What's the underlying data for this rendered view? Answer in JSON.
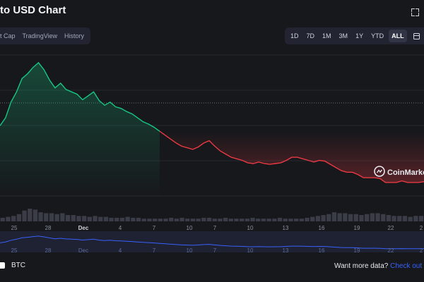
{
  "header": {
    "title": "to USD Chart"
  },
  "view_tabs": [
    "t Cap",
    "TradingView",
    "History"
  ],
  "range_buttons": [
    {
      "label": "1D",
      "active": false
    },
    {
      "label": "7D",
      "active": false
    },
    {
      "label": "1M",
      "active": false
    },
    {
      "label": "3M",
      "active": false
    },
    {
      "label": "1Y",
      "active": false
    },
    {
      "label": "YTD",
      "active": false
    },
    {
      "label": "ALL",
      "active": true
    }
  ],
  "icons": {
    "calendar": "calendar-icon",
    "expand": "expand-icon",
    "watermark": "coinmarketcap-logo-icon"
  },
  "watermark": "CoinMarket",
  "footer": {
    "legend_label": "BTC",
    "want_more": "Want more data?",
    "check_out": "Check out o"
  },
  "colors": {
    "up": "#16c784",
    "down": "#ea3943",
    "navigator": "#3861fb",
    "volume": "#3a3d47"
  },
  "chart_data": {
    "type": "line",
    "x_tick_labels": [
      "25",
      "28",
      "Dec",
      "4",
      "7",
      "10",
      "7",
      "10",
      "13",
      "16",
      "19",
      "22",
      "2"
    ],
    "reference_level": 0.41,
    "series": [
      {
        "values": [
          0.12,
          0.22,
          0.42,
          0.55,
          0.72,
          0.78,
          0.86,
          0.92,
          0.83,
          0.7,
          0.6,
          0.66,
          0.58,
          0.55,
          0.52,
          0.45,
          0.5,
          0.55,
          0.44,
          0.38,
          0.42,
          0.36,
          0.34,
          0.3,
          0.27,
          0.22,
          0.17,
          0.14,
          0.1,
          0.05,
          0.0,
          -0.05,
          -0.1,
          -0.14,
          -0.16,
          -0.18,
          -0.15,
          -0.1,
          -0.07,
          -0.14,
          -0.2,
          -0.24,
          -0.28,
          -0.3,
          -0.32,
          -0.35,
          -0.36,
          -0.34,
          -0.36,
          -0.37,
          -0.36,
          -0.35,
          -0.32,
          -0.28,
          -0.28,
          -0.3,
          -0.32,
          -0.34,
          -0.32,
          -0.33,
          -0.37,
          -0.41,
          -0.45,
          -0.47,
          -0.47,
          -0.5,
          -0.54,
          -0.54,
          -0.54,
          -0.55,
          -0.6,
          -0.6,
          -0.6,
          -0.58,
          -0.6,
          -0.6,
          -0.6,
          -0.59
        ]
      }
    ],
    "volume": [
      4,
      5,
      6,
      8,
      12,
      14,
      13,
      10,
      9,
      9,
      8,
      9,
      7,
      7,
      6,
      6,
      5,
      6,
      5,
      5,
      4,
      4,
      4,
      5,
      4,
      4,
      3,
      3,
      3,
      3,
      3,
      4,
      3,
      4,
      3,
      3,
      3,
      4,
      4,
      3,
      3,
      4,
      3,
      3,
      3,
      3,
      4,
      3,
      3,
      3,
      3,
      4,
      3,
      3,
      3,
      3,
      4,
      5,
      6,
      7,
      8,
      10,
      9,
      9,
      8,
      8,
      7,
      8,
      9,
      9,
      8,
      7,
      6,
      6,
      6,
      5,
      6,
      6
    ],
    "legend": "BTC"
  }
}
